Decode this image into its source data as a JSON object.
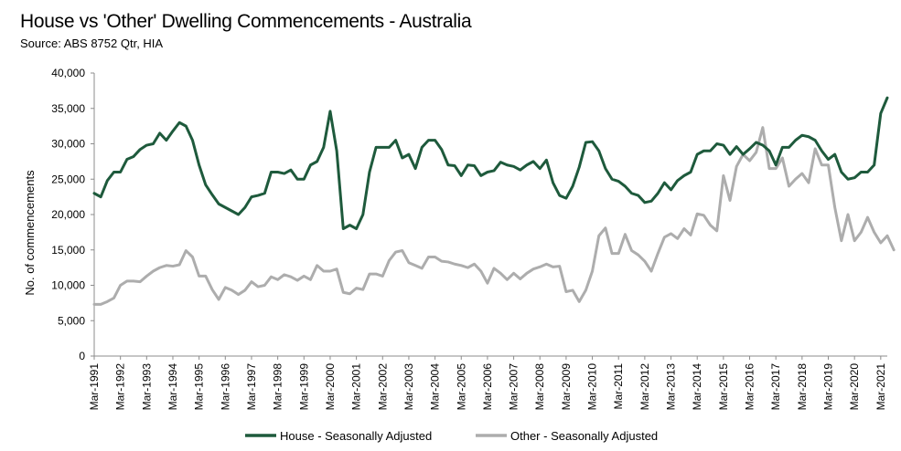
{
  "chart_data": {
    "type": "line",
    "title": "House vs 'Other' Dwelling Commencements - Australia",
    "subtitle": "Source: ABS 8752 Qtr, HIA",
    "ylabel": "No. of commencements",
    "xlabel": "",
    "ylim": [
      0,
      40000
    ],
    "y_ticks": [
      0,
      5000,
      10000,
      15000,
      20000,
      25000,
      30000,
      35000,
      40000
    ],
    "y_tick_labels": [
      "0",
      "5,000",
      "10,000",
      "15,000",
      "20,000",
      "25,000",
      "30,000",
      "35,000",
      "40,000"
    ],
    "x_tick_labels": [
      "Mar-1991",
      "Mar-1992",
      "Mar-1993",
      "Mar-1994",
      "Mar-1995",
      "Mar-1996",
      "Mar-1997",
      "Mar-1998",
      "Mar-1999",
      "Mar-2000",
      "Mar-2001",
      "Mar-2002",
      "Mar-2003",
      "Mar-2004",
      "Mar-2005",
      "Mar-2006",
      "Mar-2007",
      "Mar-2008",
      "Mar-2009",
      "Mar-2010",
      "Mar-2011",
      "Mar-2012",
      "Mar-2013",
      "Mar-2014",
      "Mar-2015",
      "Mar-2016",
      "Mar-2017",
      "Mar-2018",
      "Mar-2019",
      "Mar-2020",
      "Mar-2021"
    ],
    "frequency": "quarterly",
    "start": "Mar-1991",
    "legend_position": "bottom",
    "grid": false,
    "series": [
      {
        "name": "House - Seasonally Adjusted",
        "color": "#1e5a3c",
        "values": [
          23000,
          22500,
          24800,
          26000,
          26000,
          27800,
          28200,
          29200,
          29800,
          30000,
          31500,
          30500,
          31800,
          33000,
          32500,
          30500,
          27000,
          24200,
          22800,
          21500,
          21000,
          20500,
          20000,
          21000,
          22500,
          22700,
          23000,
          26000,
          26000,
          25800,
          26300,
          25000,
          25000,
          27000,
          27500,
          29500,
          34600,
          29000,
          18000,
          18500,
          18000,
          20000,
          26000,
          29500,
          29500,
          29500,
          30500,
          28000,
          28500,
          26500,
          29500,
          30500,
          30500,
          29200,
          27000,
          26900,
          25500,
          27000,
          26900,
          25500,
          26000,
          26200,
          27400,
          27000,
          26800,
          26300,
          27000,
          27500,
          26500,
          27700,
          24500,
          22700,
          22300,
          24000,
          26700,
          30200,
          30300,
          29000,
          26500,
          25000,
          24700,
          24000,
          23000,
          22700,
          21700,
          21900,
          23000,
          24500,
          23500,
          24800,
          25500,
          26000,
          28500,
          29000,
          29000,
          30000,
          29800,
          28500,
          29600,
          28500,
          29300,
          30200,
          29800,
          29000,
          27000,
          29500,
          29500,
          30500,
          31200,
          31000,
          30500,
          29000,
          27800,
          28500,
          26000,
          25000,
          25200,
          26000,
          26000,
          27000,
          34300,
          36500
        ]
      },
      {
        "name": "Other - Seasonally Adjusted",
        "color": "#adadad",
        "values": [
          7300,
          7300,
          7700,
          8200,
          10000,
          10600,
          10600,
          10500,
          11300,
          12000,
          12500,
          12800,
          12700,
          12900,
          14900,
          14000,
          11300,
          11300,
          9400,
          8000,
          9700,
          9300,
          8700,
          9300,
          10500,
          9800,
          10000,
          11200,
          10800,
          11500,
          11200,
          10700,
          11300,
          10800,
          12800,
          12000,
          12000,
          12300,
          9000,
          8800,
          9600,
          9400,
          11600,
          11600,
          11300,
          13500,
          14700,
          14900,
          13200,
          12800,
          12400,
          14000,
          14000,
          13400,
          13300,
          13000,
          12800,
          12500,
          13000,
          12000,
          10300,
          12400,
          11700,
          10800,
          11700,
          10900,
          11700,
          12300,
          12600,
          13000,
          12600,
          12700,
          9100,
          9300,
          7700,
          9300,
          12000,
          17000,
          18100,
          14500,
          14500,
          17200,
          14900,
          14300,
          13400,
          12000,
          14500,
          16800,
          17300,
          16600,
          18000,
          17100,
          20100,
          19900,
          18500,
          17700,
          25500,
          22000,
          26800,
          28500,
          27600,
          28800,
          32300,
          26500,
          26500,
          28000,
          24000,
          25000,
          25800,
          24500,
          29300,
          27000,
          27000,
          21000,
          16300,
          20000,
          16300,
          17500,
          19600,
          17500,
          16000,
          17000,
          15000
        ]
      }
    ]
  }
}
